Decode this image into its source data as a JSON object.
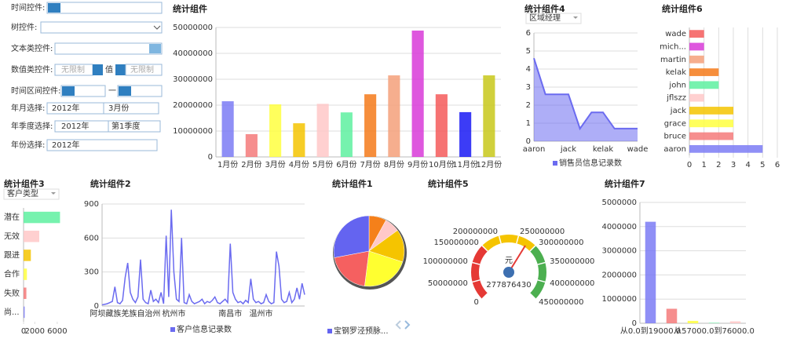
{
  "form": {
    "time": {
      "label": "时间控件:"
    },
    "tree": {
      "label": "树控件:"
    },
    "text": {
      "label": "文本类控件:"
    },
    "number": {
      "label": "数值类控件:",
      "min": "无限制",
      "sep": "值",
      "max": "无限制"
    },
    "range": {
      "label": "时间区间控件:",
      "sep": "一"
    },
    "yearMonth": {
      "label": "年月选择:",
      "year": "2012年",
      "month": "3月份"
    },
    "yearQuarter": {
      "label": "年季度选择:",
      "year": "2012年",
      "quarter": "第1季度"
    },
    "year": {
      "label": "年份选择:",
      "year": "2012年"
    }
  },
  "chart_data": [
    {
      "type": "bar",
      "title": "统计组件",
      "categories": [
        "1月份",
        "2月份",
        "3月份",
        "4月份",
        "5月份",
        "6月份",
        "7月份",
        "8月份",
        "9月份",
        "10月份",
        "11月份",
        "12月份"
      ],
      "values": [
        21500000,
        8800000,
        20300000,
        13000000,
        20500000,
        17200000,
        24200000,
        31500000,
        48800000,
        24200000,
        17300000,
        31500000
      ],
      "colors": [
        "#7b7bf5",
        "#f47a7a",
        "#ffff40",
        "#f5c400",
        "#ffc8c8",
        "#5ef0a0",
        "#f57a1a",
        "#f5a07a",
        "#d83ad8",
        "#f55a5a",
        "#1a1af5",
        "#c8c81a"
      ],
      "ylim": [
        0,
        50000000
      ],
      "yticks": [
        0,
        10000000,
        20000000,
        30000000,
        40000000,
        50000000
      ],
      "grid": true
    },
    {
      "type": "area",
      "title": "统计组件4",
      "filter": "区域经理",
      "categories": [
        "aaron",
        null,
        null,
        "jack",
        null,
        null,
        "kelak",
        null,
        null,
        "wade"
      ],
      "values": [
        4.6,
        2.6,
        2.6,
        2.6,
        0.7,
        1.6,
        1.6,
        0.7,
        0.7,
        0.7
      ],
      "color": "#6b6bf0",
      "legend": "销售员信息记录数",
      "ylim": [
        0,
        6
      ],
      "yticks": [
        0,
        1,
        2,
        3,
        4,
        5,
        6
      ],
      "grid": true
    },
    {
      "type": "bar",
      "orientation": "horizontal",
      "title": "统计组件6",
      "categories": [
        "wade",
        "mich...",
        "martin",
        "kelak",
        "john",
        "jflszz",
        "jack",
        "grace",
        "bruce",
        "aaron"
      ],
      "values": [
        1,
        1,
        1,
        2,
        2,
        1,
        3,
        3,
        3,
        5
      ],
      "colors": [
        "#f55a5a",
        "#d83ad8",
        "#f5a07a",
        "#f57a1a",
        "#5ef0a0",
        "#ffc8c8",
        "#f5c400",
        "#ffff40",
        "#f47a7a",
        "#7b7bf5"
      ],
      "xlim": [
        0,
        6
      ],
      "xticks": [
        0,
        1,
        2,
        3,
        4,
        5,
        6
      ],
      "grid": true
    },
    {
      "type": "bar",
      "orientation": "horizontal",
      "title": "统计组件3",
      "filter": "客户类型",
      "categories": [
        "潜在",
        "无效",
        "跟进",
        "合作",
        "失败",
        "尚..."
      ],
      "values": [
        6500,
        2800,
        1300,
        600,
        500,
        200
      ],
      "colors": [
        "#5ef0a0",
        "#ffc8c8",
        "#f5c400",
        "#ffff40",
        "#f47a7a",
        "#7b7bf5"
      ],
      "xlim": [
        0,
        7000
      ],
      "xticks": [
        0,
        2000,
        6000
      ],
      "grid": false,
      "labels_left": true
    },
    {
      "type": "line",
      "title": "统计组件2",
      "categories": [
        null,
        null,
        null,
        null,
        null,
        null,
        null,
        null,
        null,
        "阿坝藏族羌族自治州",
        null,
        null,
        null,
        null,
        null,
        null,
        null,
        null,
        null,
        null,
        null,
        null,
        null,
        null,
        null,
        null,
        null,
        null,
        "杭州市",
        null,
        null,
        null,
        null,
        null,
        null,
        null,
        null,
        null,
        null,
        null,
        null,
        null,
        null,
        null,
        null,
        null,
        null,
        null,
        null,
        null,
        "南昌市",
        null,
        null,
        null,
        null,
        null,
        null,
        null,
        null,
        null,
        null,
        null,
        "温州市",
        null,
        null,
        null,
        null,
        null,
        null,
        null,
        null,
        null,
        null,
        null,
        null,
        null,
        null,
        null,
        null,
        null
      ],
      "values": [
        10,
        15,
        20,
        30,
        40,
        170,
        30,
        20,
        50,
        250,
        380,
        120,
        60,
        30,
        80,
        410,
        60,
        30,
        20,
        140,
        40,
        60,
        30,
        120,
        20,
        620,
        80,
        850,
        300,
        60,
        40,
        600,
        30,
        20,
        100,
        40,
        20,
        30,
        40,
        60,
        20,
        40,
        30,
        50,
        80,
        30,
        20,
        40,
        60,
        30,
        550,
        120,
        60,
        30,
        40,
        20,
        50,
        30,
        240,
        60,
        30,
        40,
        20,
        30,
        100,
        40,
        20,
        30,
        480,
        350,
        60,
        30,
        40,
        120,
        30,
        60,
        160,
        60,
        200,
        100
      ],
      "color": "#6b6bf0",
      "legend": "客户信息记录数",
      "ylim": [
        0,
        900
      ],
      "yticks": [
        0,
        300,
        600,
        900
      ],
      "grid": true
    },
    {
      "type": "pie",
      "title": "统计组件1",
      "legend": "宝钢罗泾预脉...",
      "values": [
        8,
        7,
        15,
        22,
        20,
        28
      ],
      "colors": [
        "#f5801a",
        "#ffc8c8",
        "#f5c400",
        "#ffff30",
        "#f56060",
        "#6464f0"
      ]
    },
    {
      "type": "gauge",
      "title": "统计组件5",
      "value": 277876430,
      "unit": "元",
      "ylim": [
        0,
        450000000
      ],
      "yticks": [
        0,
        50000000,
        100000000,
        150000000,
        200000000,
        250000000,
        300000000,
        350000000,
        400000000,
        450000000
      ],
      "bands": [
        {
          "from": 0,
          "to": 150000000,
          "color": "#e53935"
        },
        {
          "from": 150000000,
          "to": 300000000,
          "color": "#f5c400"
        },
        {
          "from": 300000000,
          "to": 450000000,
          "color": "#4caf50"
        }
      ],
      "color": "#3d6fb0"
    },
    {
      "type": "bar",
      "title": "统计组件7",
      "categories": [
        "从0.0到19000.0",
        null,
        null,
        "从57000.0到76000.0",
        null
      ],
      "values": [
        4200000,
        600000,
        100000,
        20000,
        80000
      ],
      "colors": [
        "#7b7bf5",
        "#f47a7a",
        "#ffff40",
        "#5ef0a0",
        "#ffc8c8"
      ],
      "ylim": [
        0,
        5000000
      ],
      "yticks": [
        0,
        1000000,
        2000000,
        3000000,
        4000000,
        5000000
      ],
      "grid": true
    }
  ]
}
